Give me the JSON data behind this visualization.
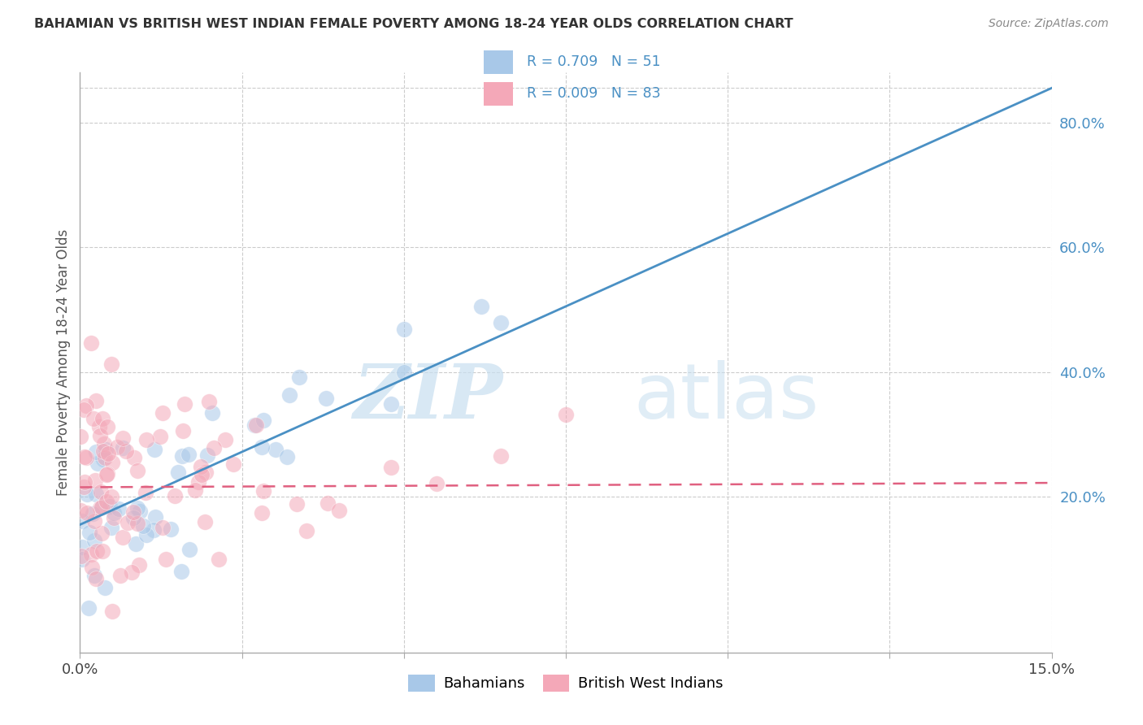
{
  "title": "BAHAMIAN VS BRITISH WEST INDIAN FEMALE POVERTY AMONG 18-24 YEAR OLDS CORRELATION CHART",
  "source": "Source: ZipAtlas.com",
  "ylabel": "Female Poverty Among 18-24 Year Olds",
  "xlim": [
    0.0,
    0.15
  ],
  "ylim": [
    -0.05,
    0.88
  ],
  "xtick_vals": [
    0.0,
    0.025,
    0.05,
    0.075,
    0.1,
    0.125,
    0.15
  ],
  "xticklabels": [
    "0.0%",
    "",
    "",
    "",
    "",
    "",
    "15.0%"
  ],
  "ytick_right_vals": [
    0.2,
    0.4,
    0.6,
    0.8
  ],
  "ytick_right_labels": [
    "20.0%",
    "40.0%",
    "60.0%",
    "80.0%"
  ],
  "color_blue": "#a8c8e8",
  "color_pink": "#f4a8b8",
  "color_line_blue": "#4a90c4",
  "color_line_pink": "#e06080",
  "watermark_zip": "ZIP",
  "watermark_atlas": "atlas",
  "legend_line1": "R = 0.709   N = 51",
  "legend_line2": "R = 0.009   N = 83",
  "blue_line_x0": 0.0,
  "blue_line_y0": 0.155,
  "blue_line_x1": 0.15,
  "blue_line_y1": 0.855,
  "pink_line_x0": 0.0,
  "pink_line_y0": 0.215,
  "pink_line_x1": 0.15,
  "pink_line_y1": 0.222
}
